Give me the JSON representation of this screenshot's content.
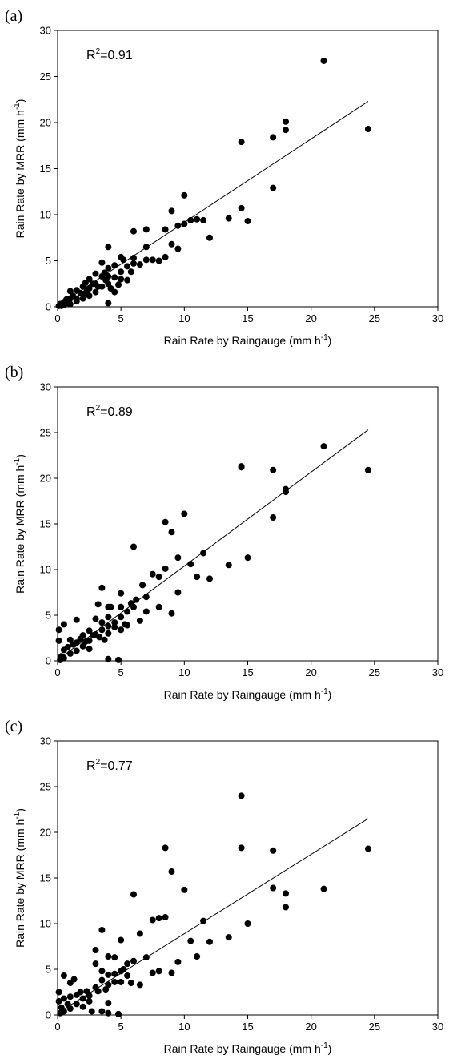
{
  "chart_data": [
    {
      "type": "scatter",
      "panel_label": "(a)",
      "xlabel": {
        "main": "Rain Rate by Raingauge (mm h",
        "sup": "-1",
        "close": ")"
      },
      "ylabel": {
        "main": "Rain Rate by MRR (mm h",
        "sup": "-1",
        "close": ")"
      },
      "annotation": {
        "main": "R",
        "sup": "2",
        "rest": "=0.91"
      },
      "xlim": [
        0,
        30
      ],
      "ylim": [
        0,
        30
      ],
      "xticks": [
        0,
        5,
        10,
        15,
        20,
        25,
        30
      ],
      "yticks": [
        0,
        5,
        10,
        15,
        20,
        25,
        30
      ],
      "grid": false,
      "fit_line": {
        "x": [
          0,
          24.5
        ],
        "y": [
          0.1,
          22.3
        ]
      },
      "points": [
        [
          0.1,
          0.1
        ],
        [
          0.2,
          0.3
        ],
        [
          0.3,
          0.1
        ],
        [
          0.5,
          0.5
        ],
        [
          0.5,
          0.2
        ],
        [
          0.7,
          0.8
        ],
        [
          0.8,
          0.4
        ],
        [
          1,
          1.7
        ],
        [
          1,
          0.9
        ],
        [
          1,
          0.3
        ],
        [
          1.2,
          1.2
        ],
        [
          1.5,
          1.8
        ],
        [
          1.5,
          0.9
        ],
        [
          1.5,
          0.6
        ],
        [
          1.8,
          1.5
        ],
        [
          2,
          2.2
        ],
        [
          2,
          1.4
        ],
        [
          2,
          0.9
        ],
        [
          2.2,
          2.6
        ],
        [
          2.3,
          1.7
        ],
        [
          2.5,
          3
        ],
        [
          2.5,
          2
        ],
        [
          2.5,
          1.2
        ],
        [
          2.8,
          2.5
        ],
        [
          3,
          3.6
        ],
        [
          3,
          2.5
        ],
        [
          3,
          1.6
        ],
        [
          3.2,
          2.2
        ],
        [
          3.5,
          4.8
        ],
        [
          3.5,
          3.3
        ],
        [
          3.5,
          2.2
        ],
        [
          3.7,
          3.7
        ],
        [
          3.8,
          2.9
        ],
        [
          4,
          6.5
        ],
        [
          4,
          4.2
        ],
        [
          4,
          3.3
        ],
        [
          4,
          2.5
        ],
        [
          4,
          0.4
        ],
        [
          4.2,
          2
        ],
        [
          4.5,
          4.5
        ],
        [
          4.5,
          3.2
        ],
        [
          4.5,
          1.6
        ],
        [
          4.8,
          2.4
        ],
        [
          5,
          5.4
        ],
        [
          5,
          3.8
        ],
        [
          5,
          3
        ],
        [
          5.2,
          5.1
        ],
        [
          5.5,
          4.4
        ],
        [
          5.5,
          2.9
        ],
        [
          5.8,
          3.8
        ],
        [
          6,
          8.2
        ],
        [
          6,
          5.3
        ],
        [
          6,
          4.7
        ],
        [
          6.5,
          4.6
        ],
        [
          7,
          8.4
        ],
        [
          7,
          6.5
        ],
        [
          7,
          5.1
        ],
        [
          7.5,
          5.1
        ],
        [
          8,
          5
        ],
        [
          8.5,
          8.4
        ],
        [
          8.5,
          5.4
        ],
        [
          9,
          10.4
        ],
        [
          9,
          6.8
        ],
        [
          9.5,
          8.8
        ],
        [
          9.5,
          6.3
        ],
        [
          10,
          12.1
        ],
        [
          10,
          9
        ],
        [
          10.5,
          9.4
        ],
        [
          11,
          9.5
        ],
        [
          11.5,
          9.4
        ],
        [
          12,
          7.5
        ],
        [
          13.5,
          9.6
        ],
        [
          14.5,
          17.9
        ],
        [
          14.5,
          10.7
        ],
        [
          15,
          9.3
        ],
        [
          17,
          18.4
        ],
        [
          17,
          12.9
        ],
        [
          18,
          20.1
        ],
        [
          18,
          19.2
        ],
        [
          21,
          26.7
        ],
        [
          24.5,
          19.3
        ]
      ]
    },
    {
      "type": "scatter",
      "panel_label": "(b)",
      "xlabel": {
        "main": "Rain Rate by Raingauge (mm h",
        "sup": "-1",
        "close": ")"
      },
      "ylabel": {
        "main": "Rain Rate by MRR (mm h",
        "sup": "-1",
        "close": ")"
      },
      "annotation": {
        "main": "R",
        "sup": "2",
        "rest": "=0.89"
      },
      "xlim": [
        0,
        30
      ],
      "ylim": [
        0,
        30
      ],
      "xticks": [
        0,
        5,
        10,
        15,
        20,
        25,
        30
      ],
      "yticks": [
        0,
        5,
        10,
        15,
        20,
        25,
        30
      ],
      "grid": false,
      "fit_line": {
        "x": [
          0,
          24.5
        ],
        "y": [
          0.1,
          25.3
        ]
      },
      "points": [
        [
          0.1,
          3.4
        ],
        [
          0.1,
          2.2
        ],
        [
          0.2,
          0.1
        ],
        [
          0.3,
          0.5
        ],
        [
          0.5,
          4
        ],
        [
          0.5,
          1.2
        ],
        [
          0.5,
          0.3
        ],
        [
          0.8,
          1.5
        ],
        [
          1,
          2.3
        ],
        [
          1,
          0.8
        ],
        [
          1.2,
          1.8
        ],
        [
          1.5,
          4.5
        ],
        [
          1.5,
          2
        ],
        [
          1.5,
          1.1
        ],
        [
          1.8,
          2.4
        ],
        [
          2,
          2.8
        ],
        [
          2,
          1.6
        ],
        [
          2.2,
          2.1
        ],
        [
          2.5,
          3.3
        ],
        [
          2.5,
          2.2
        ],
        [
          2.5,
          1.3
        ],
        [
          2.8,
          2.8
        ],
        [
          3,
          2.9
        ],
        [
          3,
          4.6
        ],
        [
          3.2,
          6.2
        ],
        [
          3.3,
          2.6
        ],
        [
          3.5,
          8
        ],
        [
          3.5,
          4.2
        ],
        [
          3.5,
          3.4
        ],
        [
          3.7,
          2.3
        ],
        [
          4,
          5.9
        ],
        [
          4,
          4.8
        ],
        [
          4,
          3.8
        ],
        [
          4,
          3
        ],
        [
          4,
          0.2
        ],
        [
          4.2,
          5.9
        ],
        [
          4.5,
          4.2
        ],
        [
          4.5,
          3.7
        ],
        [
          4.8,
          0.1
        ],
        [
          5,
          7.4
        ],
        [
          5,
          5.9
        ],
        [
          5,
          4.8
        ],
        [
          5,
          3.4
        ],
        [
          5.3,
          4
        ],
        [
          5.5,
          5.4
        ],
        [
          5.5,
          3.9
        ],
        [
          5.8,
          6.3
        ],
        [
          6,
          12.5
        ],
        [
          6,
          5.9
        ],
        [
          6.2,
          6.7
        ],
        [
          6.5,
          4.4
        ],
        [
          6.7,
          8.3
        ],
        [
          7,
          7
        ],
        [
          7,
          5.4
        ],
        [
          7.5,
          9.5
        ],
        [
          8,
          9.2
        ],
        [
          8,
          5.9
        ],
        [
          8.5,
          15.2
        ],
        [
          8.5,
          10.1
        ],
        [
          9,
          14.1
        ],
        [
          9,
          5.2
        ],
        [
          9.5,
          11.3
        ],
        [
          9.5,
          7.5
        ],
        [
          10,
          16.1
        ],
        [
          10.5,
          10.6
        ],
        [
          11,
          9.2
        ],
        [
          11.5,
          11.8
        ],
        [
          12,
          9
        ],
        [
          13.5,
          10.5
        ],
        [
          14.5,
          21.2
        ],
        [
          14.5,
          21.3
        ],
        [
          15,
          11.3
        ],
        [
          17,
          20.9
        ],
        [
          17,
          15.7
        ],
        [
          18,
          18.8
        ],
        [
          18,
          18.5
        ],
        [
          21,
          23.5
        ],
        [
          24.5,
          20.9
        ]
      ]
    },
    {
      "type": "scatter",
      "panel_label": "(c)",
      "xlabel": {
        "main": "Rain Rate by Raingauge (mm h",
        "sup": "-1",
        "close": ")"
      },
      "ylabel": {
        "main": "Rain Rate by MRR (mm  h",
        "sup": "-1",
        "close": ")"
      },
      "annotation": {
        "main": "R",
        "sup": "2",
        "rest": "=0.77"
      },
      "xlim": [
        0,
        30
      ],
      "ylim": [
        0,
        30
      ],
      "xticks": [
        0,
        5,
        10,
        15,
        20,
        25,
        30
      ],
      "yticks": [
        0,
        5,
        10,
        15,
        20,
        25,
        30
      ],
      "grid": false,
      "fit_line": {
        "x": [
          0,
          24.5
        ],
        "y": [
          0.2,
          21.5
        ]
      },
      "points": [
        [
          0.1,
          2.5
        ],
        [
          0.1,
          1.5
        ],
        [
          0.2,
          0.2
        ],
        [
          0.3,
          0.8
        ],
        [
          0.5,
          4.3
        ],
        [
          0.5,
          1.8
        ],
        [
          0.5,
          0.4
        ],
        [
          0.8,
          1.2
        ],
        [
          1,
          3.5
        ],
        [
          1,
          2
        ],
        [
          1,
          0.7
        ],
        [
          1.3,
          3.9
        ],
        [
          1.5,
          2.2
        ],
        [
          1.5,
          1.2
        ],
        [
          1.8,
          2.5
        ],
        [
          2,
          1.8
        ],
        [
          2,
          0.9
        ],
        [
          2.3,
          2.6
        ],
        [
          2.5,
          2.1
        ],
        [
          2.5,
          1.5
        ],
        [
          2.7,
          0.4
        ],
        [
          3,
          7.1
        ],
        [
          3,
          5.6
        ],
        [
          3,
          3
        ],
        [
          3.2,
          2.6
        ],
        [
          3.5,
          9.3
        ],
        [
          3.5,
          4.8
        ],
        [
          3.5,
          3.8
        ],
        [
          3.5,
          0.4
        ],
        [
          3.8,
          2.8
        ],
        [
          4,
          6.4
        ],
        [
          4,
          4.4
        ],
        [
          4,
          3.3
        ],
        [
          4,
          1.3
        ],
        [
          4,
          0.2
        ],
        [
          4.5,
          6.3
        ],
        [
          4.5,
          4.5
        ],
        [
          4.5,
          3.6
        ],
        [
          4.8,
          0.1
        ],
        [
          5,
          8.2
        ],
        [
          5,
          4.8
        ],
        [
          5,
          3.6
        ],
        [
          5.2,
          5
        ],
        [
          5.5,
          5.6
        ],
        [
          5.5,
          4.3
        ],
        [
          5.8,
          3.5
        ],
        [
          6,
          13.2
        ],
        [
          6,
          5.9
        ],
        [
          6.5,
          8.9
        ],
        [
          6.5,
          3.3
        ],
        [
          7,
          6.3
        ],
        [
          7.5,
          10.4
        ],
        [
          7.5,
          4.6
        ],
        [
          8,
          10.6
        ],
        [
          8,
          4.8
        ],
        [
          8.5,
          18.3
        ],
        [
          8.5,
          10.7
        ],
        [
          9,
          15.7
        ],
        [
          9,
          4.6
        ],
        [
          9.5,
          5.8
        ],
        [
          10,
          13.7
        ],
        [
          10.5,
          8.1
        ],
        [
          11,
          6.4
        ],
        [
          11.5,
          10.3
        ],
        [
          12,
          8
        ],
        [
          13.5,
          8.5
        ],
        [
          14.5,
          24
        ],
        [
          14.5,
          18.3
        ],
        [
          15,
          10
        ],
        [
          17,
          18
        ],
        [
          17,
          13.9
        ],
        [
          18,
          13.3
        ],
        [
          18,
          11.8
        ],
        [
          21,
          13.8
        ],
        [
          24.5,
          18.2
        ]
      ]
    }
  ]
}
